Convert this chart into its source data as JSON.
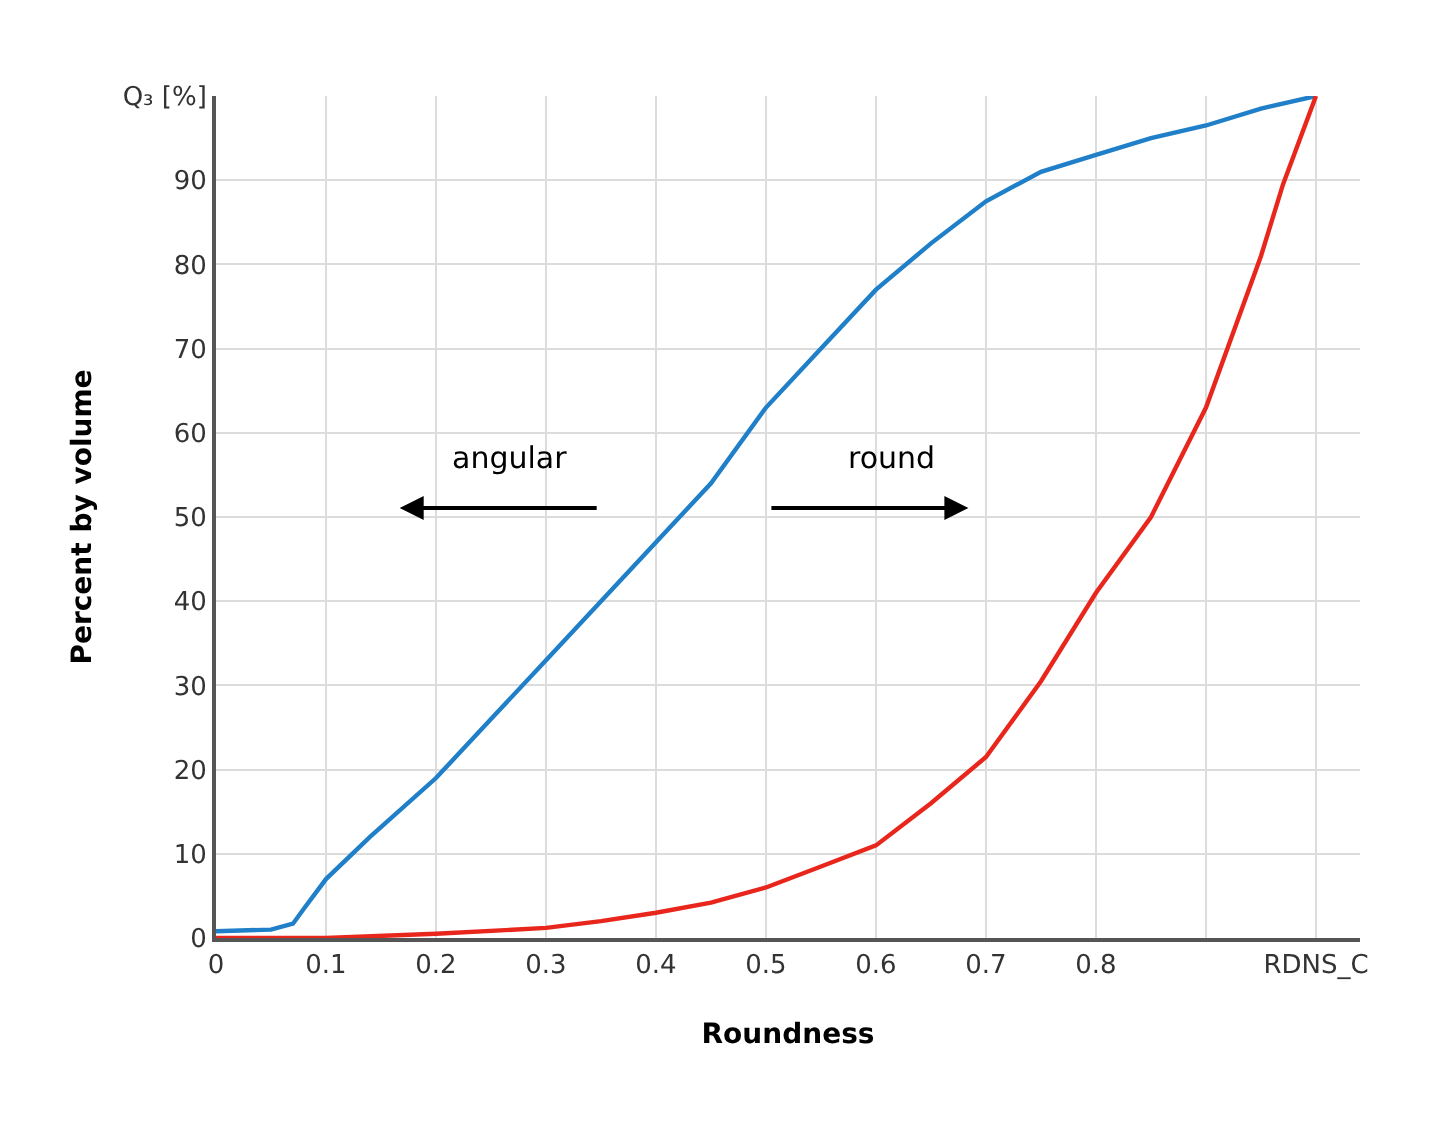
{
  "chart_data": {
    "type": "line",
    "xlabel": "Roundness",
    "ylabel": "Percent by volume",
    "xlim": [
      0,
      1.04
    ],
    "xticks": [
      0,
      0.1,
      0.2,
      0.3,
      0.4,
      0.5,
      0.6,
      0.7,
      0.8,
      {
        "value": 0.9,
        "label": null
      },
      {
        "value": 1.0,
        "label": "RDNS_C"
      }
    ],
    "ylim": [
      0,
      100
    ],
    "yticks": [
      0,
      10,
      20,
      30,
      40,
      50,
      60,
      70,
      80,
      90,
      {
        "value": 100,
        "label": "Q₃ [%]"
      }
    ],
    "grid": true,
    "marker": "none",
    "line_style": "solid",
    "annotations": [
      "angular",
      "round"
    ],
    "series": [
      {
        "color": "#1f7fc8",
        "x": [
          0,
          0.05,
          0.07,
          0.08,
          0.1,
          0.14,
          0.2,
          0.25,
          0.3,
          0.35,
          0.4,
          0.45,
          0.5,
          0.55,
          0.6,
          0.65,
          0.7,
          0.75,
          0.8,
          0.85,
          0.9,
          0.95,
          1.0
        ],
        "values": [
          0.8,
          1,
          1.7,
          3.5,
          7,
          12,
          19,
          26,
          33,
          40,
          47,
          54,
          63,
          70,
          77,
          82.5,
          87.5,
          91,
          93,
          95,
          96.5,
          98.5,
          100
        ]
      },
      {
        "color": "#e8261c",
        "x": [
          0,
          0.1,
          0.2,
          0.3,
          0.35,
          0.4,
          0.45,
          0.5,
          0.55,
          0.6,
          0.65,
          0.7,
          0.75,
          0.8,
          0.85,
          0.9,
          0.95,
          0.97,
          1.0
        ],
        "values": [
          0,
          0,
          0.5,
          1.2,
          2,
          3,
          4.2,
          6,
          8.5,
          11,
          16,
          21.5,
          30.5,
          41,
          50,
          63,
          81,
          89.5,
          100
        ]
      }
    ]
  }
}
